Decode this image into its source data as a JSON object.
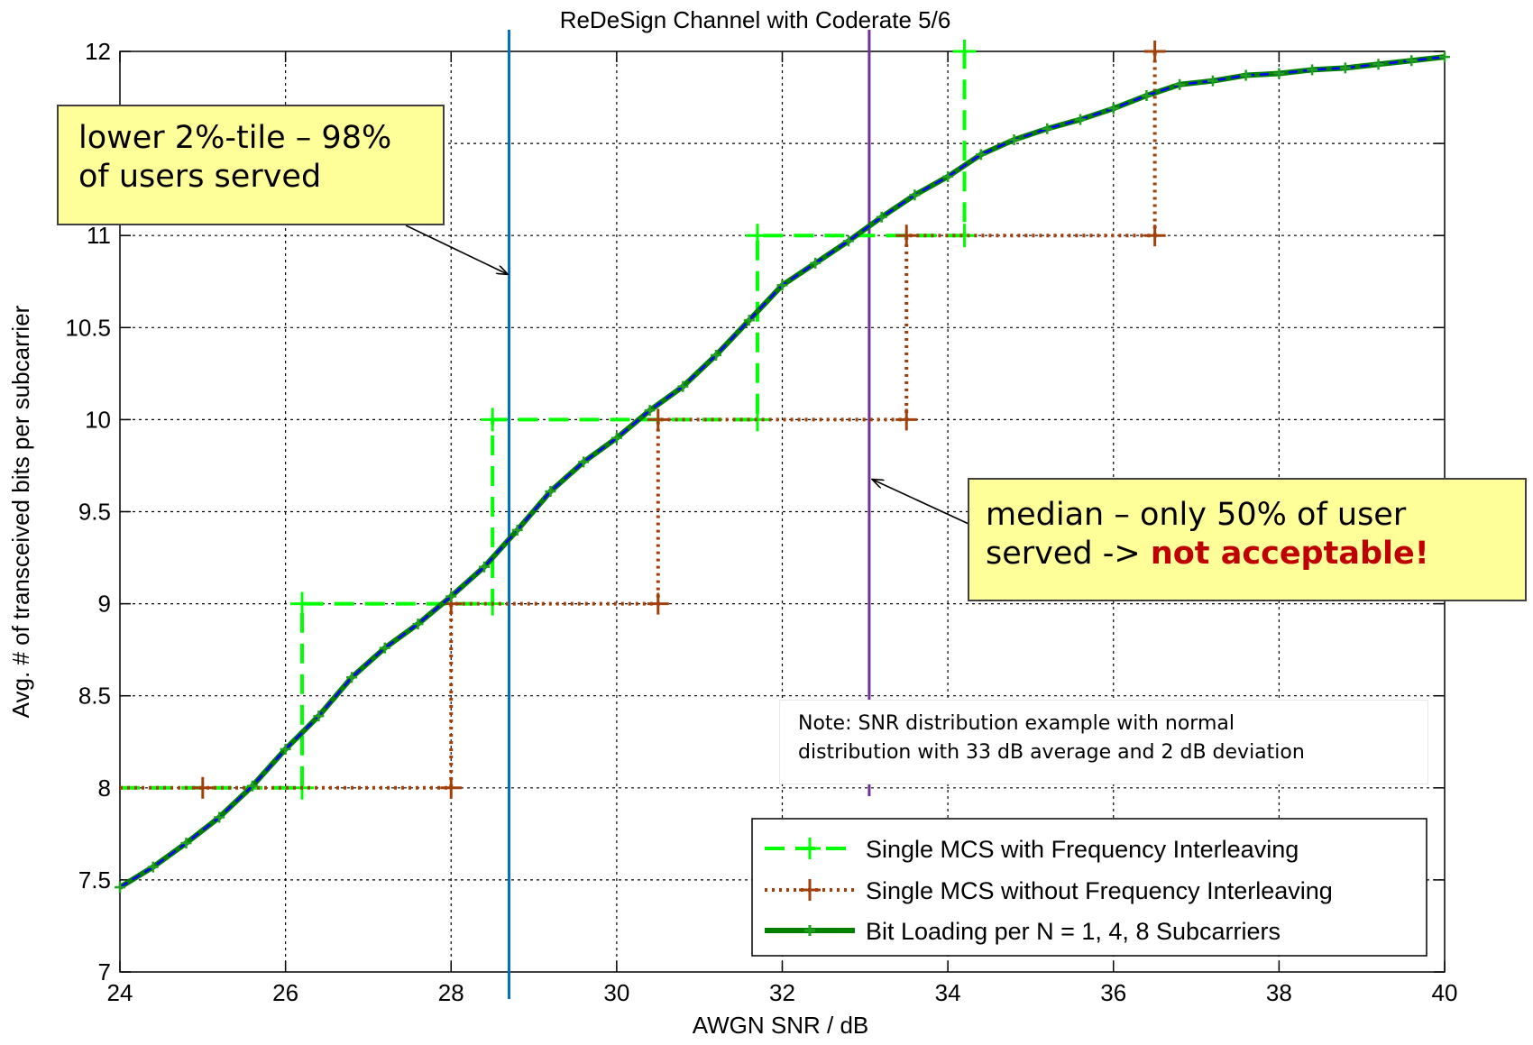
{
  "chart_data": {
    "type": "line",
    "title": "ReDeSign Channel with Coderate 5/6",
    "xlabel": "AWGN SNR / dB",
    "ylabel": "Avg. # of transceived bits per subcarrier",
    "xlim": [
      24,
      40
    ],
    "ylim": [
      7,
      12
    ],
    "xticks": [
      24,
      26,
      28,
      30,
      32,
      34,
      36,
      38,
      40
    ],
    "yticks": [
      7,
      7.5,
      8,
      8.5,
      9,
      9.5,
      10,
      10.5,
      11,
      11.5,
      12
    ],
    "ytick_labels": [
      "7",
      "7.5",
      "8",
      "8.5",
      "9",
      "9.5",
      "10",
      "10.5",
      "11",
      "",
      "12"
    ],
    "grid": true,
    "legend_position": "bottom-right",
    "series": [
      {
        "name": "Single MCS with Frequency Interleaving",
        "style": "dashed",
        "color": "#00ff00",
        "marker": "+",
        "x": [
          24,
          26.2,
          26.2,
          28.5,
          28.5,
          31.7,
          31.7,
          34.2,
          34.2
        ],
        "y": [
          8,
          8,
          9,
          9,
          10,
          10,
          11,
          11,
          12
        ]
      },
      {
        "name": "Single MCS without Frequency Interleaving",
        "style": "dotted",
        "color": "#a0400a",
        "marker": "+",
        "x": [
          24,
          25,
          28,
          28,
          30.5,
          30.5,
          33.5,
          33.5,
          36.5,
          36.5
        ],
        "y": [
          8,
          8,
          8,
          9,
          9,
          10,
          10,
          11,
          11,
          12
        ]
      },
      {
        "name": "Bit Loading per N = 1, 4, 8 Subcarriers",
        "style": "solid",
        "color": "#008000",
        "overlay_color": "#0000ff",
        "marker": "+",
        "x": [
          24,
          24.4,
          24.8,
          25.2,
          25.6,
          26,
          26.4,
          26.8,
          27.2,
          27.6,
          28,
          28.4,
          28.8,
          29.2,
          29.6,
          30,
          30.4,
          30.8,
          31.2,
          31.6,
          32,
          32.4,
          32.8,
          33.2,
          33.6,
          34,
          34.4,
          34.8,
          35.2,
          35.6,
          36,
          36.4,
          36.8,
          37.2,
          37.6,
          38,
          38.4,
          38.8,
          39.2,
          39.6,
          40
        ],
        "y": [
          7.46,
          7.57,
          7.7,
          7.84,
          8.01,
          8.21,
          8.39,
          8.6,
          8.76,
          8.89,
          9.04,
          9.2,
          9.4,
          9.61,
          9.77,
          9.9,
          10.05,
          10.18,
          10.35,
          10.54,
          10.73,
          10.85,
          10.97,
          11.1,
          11.22,
          11.32,
          11.44,
          11.52,
          11.58,
          11.63,
          11.69,
          11.76,
          11.82,
          11.84,
          11.87,
          11.88,
          11.9,
          11.91,
          11.93,
          11.95,
          11.97
        ]
      }
    ],
    "vertical_lines": [
      {
        "x": 28.7,
        "color": "#0070c0"
      },
      {
        "x": 33.05,
        "color": "#7030a0"
      }
    ]
  },
  "annotations": {
    "lower_callout": [
      "lower 2%-tile – 98%",
      "of users served"
    ],
    "median_callout": {
      "line1": "median – only 50% of user",
      "line2_prefix": "served -> ",
      "line2_emphasis": "not acceptable!"
    },
    "note_lines": [
      "Note: SNR distribution example with normal",
      "distribution with 33 dB average and 2 dB deviation"
    ]
  },
  "colors": {
    "callout_fill": "#ffff99",
    "warning_text": "#c00000"
  }
}
